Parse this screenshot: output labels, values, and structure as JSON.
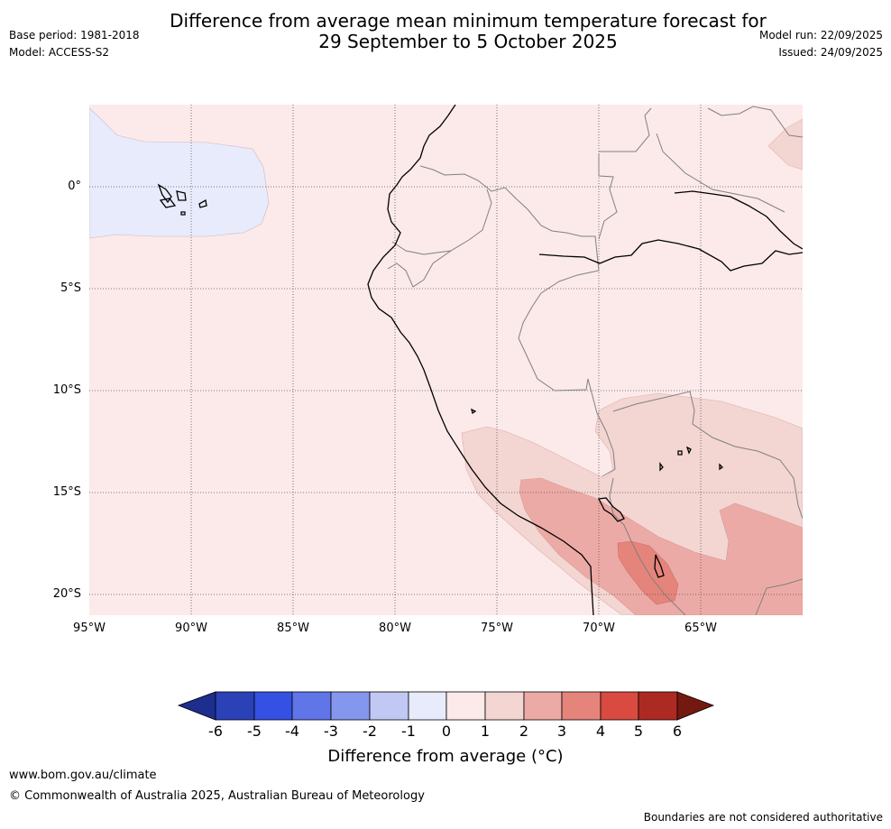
{
  "header": {
    "title_line1": "Difference from average mean minimum temperature forecast for",
    "title_line2": "29 September to 5 October 2025",
    "base_period": "Base period: 1981-2018",
    "model": "Model: ACCESS-S2",
    "model_run": "Model run: 22/09/2025",
    "issued": "Issued: 24/09/2025"
  },
  "map": {
    "lat_labels": [
      "0°",
      "5°S",
      "10°S",
      "15°S",
      "20°S"
    ],
    "lon_labels": [
      "95°W",
      "90°W",
      "85°W",
      "80°W",
      "75°W",
      "70°W",
      "65°W"
    ],
    "region": "Eastern Pacific and western South America (Ecuador, Peru, Bolivia, northern Chile)"
  },
  "colorbar": {
    "ticks": [
      "-6",
      "-5",
      "-4",
      "-3",
      "-2",
      "-1",
      "0",
      "1",
      "2",
      "3",
      "4",
      "5",
      "6"
    ],
    "colors": [
      "#1e2e8e",
      "#2a41b8",
      "#3451e3",
      "#5f75e8",
      "#8597ec",
      "#c2c8f4",
      "#e8ebfb",
      "#fbeae9",
      "#f3d5d2",
      "#ecaaa6",
      "#e5847b",
      "#d94a40",
      "#ad2a22",
      "#74190f"
    ],
    "label": "Difference from average (°C)"
  },
  "footer": {
    "url": "www.bom.gov.au/climate",
    "copyright": "© Commonwealth of Australia 2025, Australian Bureau of Meteorology",
    "disclaimer": "Boundaries are not considered authoritative"
  }
}
